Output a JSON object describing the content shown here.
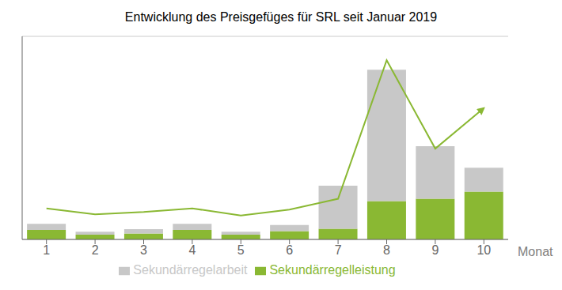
{
  "chart_data": {
    "type": "bar",
    "title": "Entwicklung des Preisgefüges für SRL seit Januar 2019",
    "xlabel": "Monat",
    "categories": [
      1,
      2,
      3,
      4,
      5,
      6,
      7,
      8,
      9,
      10
    ],
    "series": [
      {
        "name": "Sekundärregelleistung",
        "type": "bar",
        "color": "#8ab833",
        "values": [
          4.0,
          2.0,
          2.5,
          4.0,
          2.0,
          3.5,
          4.5,
          16.0,
          17.0,
          20.0
        ]
      },
      {
        "name": "Sekundärregelarbeit",
        "type": "bar",
        "color": "#c8c8c8",
        "values": [
          2.5,
          1.2,
          1.8,
          2.5,
          1.2,
          2.5,
          18.0,
          55.0,
          22.0,
          10.0
        ]
      },
      {
        "type": "line",
        "color": "#8ab833",
        "values": [
          13.0,
          10.5,
          11.5,
          13.0,
          10.0,
          12.5,
          17.0,
          75.0,
          38.0,
          55.0
        ]
      }
    ],
    "stacked": true,
    "ylim": [
      0,
      85
    ],
    "yticks": [
      0,
      17,
      34,
      51,
      68,
      85
    ],
    "grid": true,
    "legend": "bottom",
    "tick_labels": "x"
  }
}
